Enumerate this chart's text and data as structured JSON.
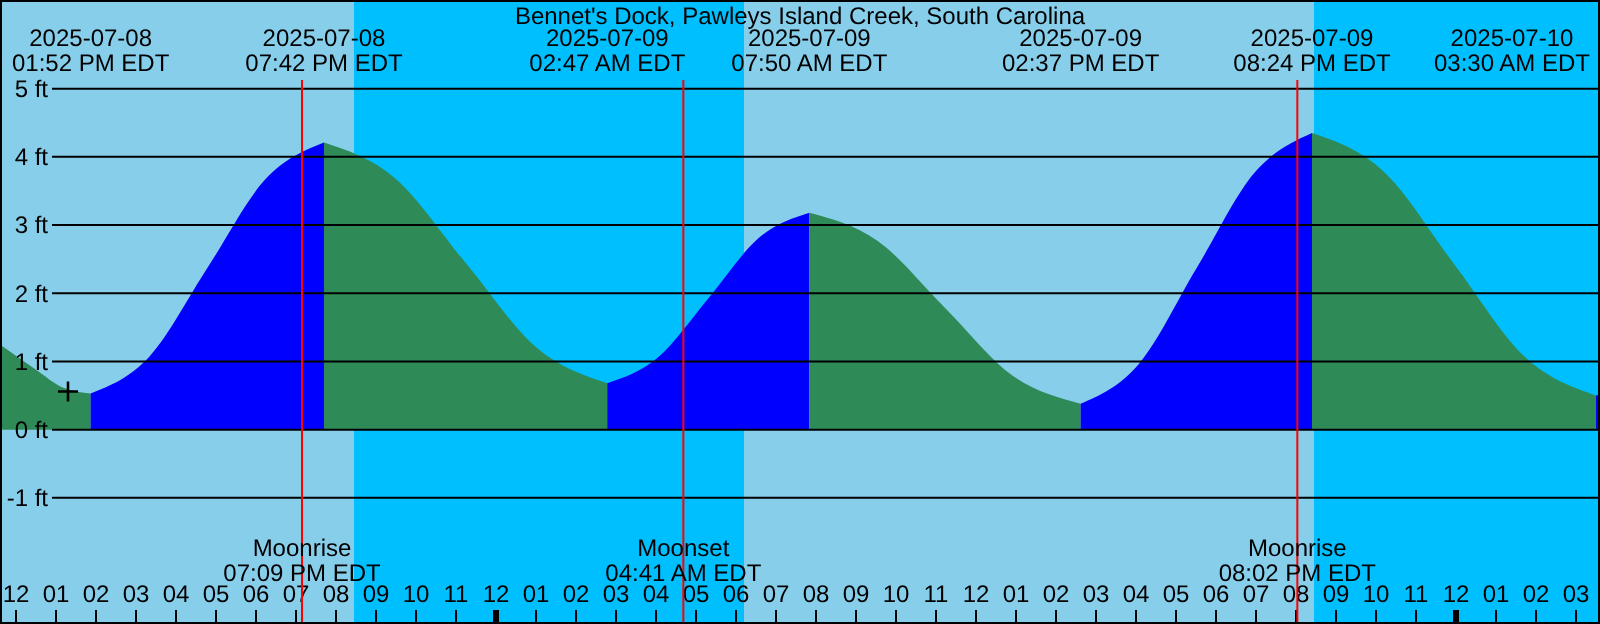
{
  "chart_data": {
    "type": "area",
    "title": "Bennet's Dock, Pawleys Island Creek, South Carolina",
    "series": [
      {
        "color": "#2e8b57",
        "x": [
          "2025-07-08T11:36",
          "2025-07-08T12:30",
          "2025-07-08T13:12",
          "2025-07-08T13:52"
        ],
        "values": [
          1.25,
          0.88,
          0.61,
          0.53
        ]
      },
      {
        "color": "#0000ff",
        "x": [
          "2025-07-08T13:52",
          "2025-07-08T15:20",
          "2025-07-08T16:47",
          "2025-07-08T18:14",
          "2025-07-08T19:42"
        ],
        "values": [
          0.53,
          1.07,
          2.37,
          3.67,
          4.21
        ]
      },
      {
        "color": "#2e8b57",
        "x": [
          "2025-07-08T19:42",
          "2025-07-08T21:28",
          "2025-07-08T23:14",
          "2025-07-09T01:01",
          "2025-07-09T02:47"
        ],
        "values": [
          4.21,
          3.69,
          2.45,
          1.2,
          0.68
        ]
      },
      {
        "color": "#0000ff",
        "x": [
          "2025-07-09T02:47",
          "2025-07-09T04:02",
          "2025-07-09T05:19",
          "2025-07-09T06:34",
          "2025-07-09T07:50"
        ],
        "values": [
          0.68,
          1.05,
          1.93,
          2.81,
          3.18
        ]
      },
      {
        "color": "#2e8b57",
        "x": [
          "2025-07-09T07:50",
          "2025-07-09T09:32",
          "2025-07-09T11:14",
          "2025-07-09T12:55",
          "2025-07-09T14:37"
        ],
        "values": [
          3.18,
          2.77,
          1.78,
          0.79,
          0.38
        ]
      },
      {
        "color": "#0000ff",
        "x": [
          "2025-07-09T14:37",
          "2025-07-09T16:04",
          "2025-07-09T17:31",
          "2025-07-09T18:58",
          "2025-07-09T20:24"
        ],
        "values": [
          0.38,
          0.96,
          2.37,
          3.77,
          4.35
        ]
      },
      {
        "color": "#2e8b57",
        "x": [
          "2025-07-09T20:24",
          "2025-07-09T22:11",
          "2025-07-09T23:57",
          "2025-07-10T01:44",
          "2025-07-10T03:30"
        ],
        "values": [
          4.35,
          3.79,
          2.43,
          1.06,
          0.5
        ]
      },
      {
        "color": "#0000ff",
        "x": [
          "2025-07-10T03:30",
          "2025-07-10T03:36"
        ],
        "values": [
          0.5,
          0.51
        ]
      },
      {
        "type": "scatter",
        "marker": "cross",
        "color": "#000000",
        "x": [
          "2025-07-08T13:18"
        ],
        "values": [
          0.56
        ]
      }
    ],
    "xlim": [
      "2025-07-08T11:36",
      "2025-07-10T03:36"
    ],
    "xticks": [
      {
        "value": "2025-07-08T12:00",
        "label": "12"
      },
      {
        "value": "2025-07-08T13:00",
        "label": "01"
      },
      {
        "value": "2025-07-08T14:00",
        "label": "02"
      },
      {
        "value": "2025-07-08T15:00",
        "label": "03"
      },
      {
        "value": "2025-07-08T16:00",
        "label": "04"
      },
      {
        "value": "2025-07-08T17:00",
        "label": "05"
      },
      {
        "value": "2025-07-08T18:00",
        "label": "06"
      },
      {
        "value": "2025-07-08T19:00",
        "label": "07"
      },
      {
        "value": "2025-07-08T20:00",
        "label": "08"
      },
      {
        "value": "2025-07-08T21:00",
        "label": "09"
      },
      {
        "value": "2025-07-08T22:00",
        "label": "10"
      },
      {
        "value": "2025-07-08T23:00",
        "label": "11"
      },
      {
        "value": "2025-07-09T00:00",
        "label": "12"
      },
      {
        "value": "2025-07-09T01:00",
        "label": "01"
      },
      {
        "value": "2025-07-09T02:00",
        "label": "02"
      },
      {
        "value": "2025-07-09T03:00",
        "label": "03"
      },
      {
        "value": "2025-07-09T04:00",
        "label": "04"
      },
      {
        "value": "2025-07-09T05:00",
        "label": "05"
      },
      {
        "value": "2025-07-09T06:00",
        "label": "06"
      },
      {
        "value": "2025-07-09T07:00",
        "label": "07"
      },
      {
        "value": "2025-07-09T08:00",
        "label": "08"
      },
      {
        "value": "2025-07-09T09:00",
        "label": "09"
      },
      {
        "value": "2025-07-09T10:00",
        "label": "10"
      },
      {
        "value": "2025-07-09T11:00",
        "label": "11"
      },
      {
        "value": "2025-07-09T12:00",
        "label": "12"
      },
      {
        "value": "2025-07-09T13:00",
        "label": "01"
      },
      {
        "value": "2025-07-09T14:00",
        "label": "02"
      },
      {
        "value": "2025-07-09T15:00",
        "label": "03"
      },
      {
        "value": "2025-07-09T16:00",
        "label": "04"
      },
      {
        "value": "2025-07-09T17:00",
        "label": "05"
      },
      {
        "value": "2025-07-09T18:00",
        "label": "06"
      },
      {
        "value": "2025-07-09T19:00",
        "label": "07"
      },
      {
        "value": "2025-07-09T20:00",
        "label": "08"
      },
      {
        "value": "2025-07-09T21:00",
        "label": "09"
      },
      {
        "value": "2025-07-09T22:00",
        "label": "10"
      },
      {
        "value": "2025-07-09T23:00",
        "label": "11"
      },
      {
        "value": "2025-07-10T00:00",
        "label": "12"
      },
      {
        "value": "2025-07-10T01:00",
        "label": "01"
      },
      {
        "value": "2025-07-10T02:00",
        "label": "02"
      },
      {
        "value": "2025-07-10T03:00",
        "label": "03"
      }
    ],
    "x2lim": [
      "2025-07-08T11:36",
      "2025-07-10T03:36"
    ],
    "x2ticks": [
      {
        "value": "2025-07-08T13:52",
        "label": "2025-07-08\n01:52 PM EDT"
      },
      {
        "value": "2025-07-08T19:42",
        "label": "2025-07-08\n07:42 PM EDT"
      },
      {
        "value": "2025-07-09T02:47",
        "label": "2025-07-09\n02:47 AM EDT"
      },
      {
        "value": "2025-07-09T07:50",
        "label": "2025-07-09\n07:50 AM EDT"
      },
      {
        "value": "2025-07-09T14:37",
        "label": "2025-07-09\n02:37 PM EDT"
      },
      {
        "value": "2025-07-09T20:24",
        "label": "2025-07-09\n08:24 PM EDT"
      },
      {
        "value": "2025-07-10T03:30",
        "label": "2025-07-10\n03:30 AM EDT"
      }
    ],
    "ylim": [
      -2.85,
      6.3
    ],
    "yticks": [
      {
        "value": -1,
        "label": "-1 ft"
      },
      {
        "value": 0,
        "label": "0 ft"
      },
      {
        "value": 1,
        "label": "1 ft"
      },
      {
        "value": 2,
        "label": "2 ft"
      },
      {
        "value": 3,
        "label": "3 ft"
      },
      {
        "value": 4,
        "label": "4 ft"
      },
      {
        "value": 5,
        "label": "5 ft"
      }
    ],
    "grid": "y",
    "bands": [
      {
        "axis": "x",
        "from": "2025-07-08T11:36",
        "to": "2025-07-08T20:27",
        "color": "#87ceeb"
      },
      {
        "axis": "x",
        "from": "2025-07-08T20:27",
        "to": "2025-07-09T06:12",
        "color": "#00bfff"
      },
      {
        "axis": "x",
        "from": "2025-07-09T06:12",
        "to": "2025-07-09T20:27",
        "color": "#87ceeb"
      },
      {
        "axis": "x",
        "from": "2025-07-09T20:27",
        "to": "2025-07-10T03:36",
        "color": "#00bfff"
      }
    ],
    "ref_lines": [
      {
        "axis": "x",
        "value": "2025-07-08T19:09",
        "label": "Moonrise\n07:09 PM EDT",
        "color": "#ff0000"
      },
      {
        "axis": "x",
        "value": "2025-07-09T04:41",
        "label": "Moonset\n04:41 AM EDT",
        "color": "#ff0000"
      },
      {
        "axis": "x",
        "value": "2025-07-09T20:02",
        "label": "Moonrise\n08:02 PM EDT",
        "color": "#ff0000"
      }
    ]
  }
}
